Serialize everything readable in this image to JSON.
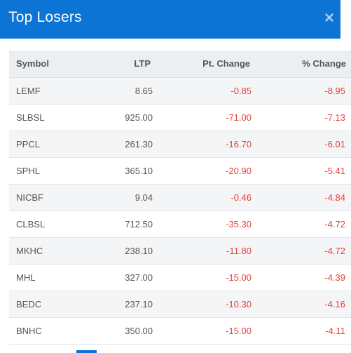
{
  "dialog": {
    "title": "Top Losers",
    "close_label": "×"
  },
  "table": {
    "headers": {
      "symbol": "Symbol",
      "ltp": "LTP",
      "pt_change": "Pt. Change",
      "pct_change": "% Change"
    },
    "rows": [
      {
        "symbol": "LEMF",
        "ltp": "8.65",
        "pt_change": "-0.85",
        "pct_change": "-8.95"
      },
      {
        "symbol": "SLBSL",
        "ltp": "925.00",
        "pt_change": "-71.00",
        "pct_change": "-7.13"
      },
      {
        "symbol": "PPCL",
        "ltp": "261.30",
        "pt_change": "-16.70",
        "pct_change": "-6.01"
      },
      {
        "symbol": "SPHL",
        "ltp": "365.10",
        "pt_change": "-20.90",
        "pct_change": "-5.41"
      },
      {
        "symbol": "NICBF",
        "ltp": "9.04",
        "pt_change": "-0.46",
        "pct_change": "-4.84"
      },
      {
        "symbol": "CLBSL",
        "ltp": "712.50",
        "pt_change": "-35.30",
        "pct_change": "-4.72"
      },
      {
        "symbol": "MKHC",
        "ltp": "238.10",
        "pt_change": "-11.80",
        "pct_change": "-4.72"
      },
      {
        "symbol": "MHL",
        "ltp": "327.00",
        "pt_change": "-15.00",
        "pct_change": "-4.39"
      },
      {
        "symbol": "BEDC",
        "ltp": "237.10",
        "pt_change": "-10.30",
        "pct_change": "-4.16"
      },
      {
        "symbol": "BNHC",
        "ltp": "350.00",
        "pt_change": "-15.00",
        "pct_change": "-4.11"
      }
    ]
  },
  "colors": {
    "header_bg": "#0b74d4",
    "negative": "#e8403a"
  }
}
